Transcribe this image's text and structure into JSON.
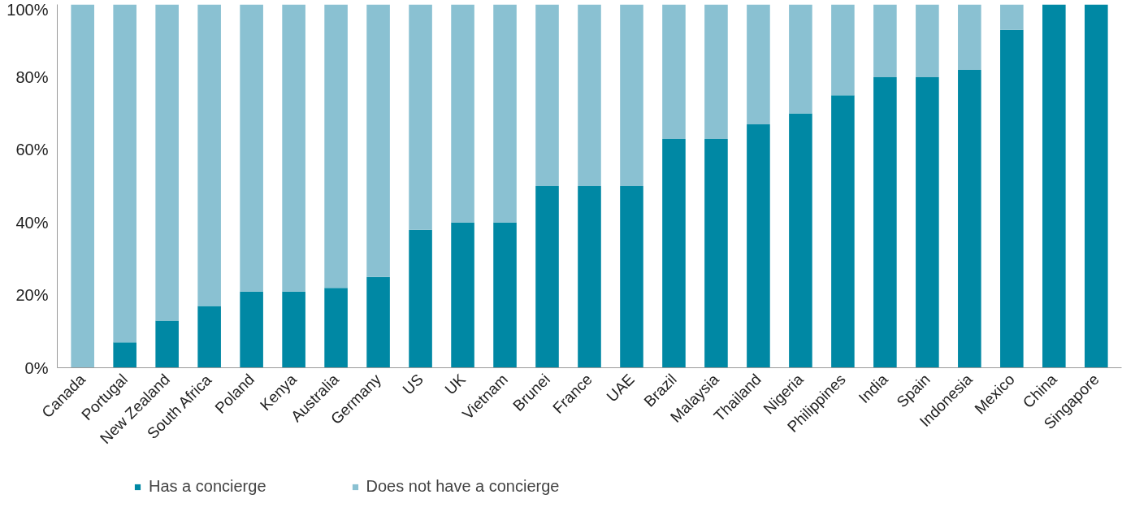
{
  "chart_data": {
    "type": "bar",
    "stacked": true,
    "categories": [
      "Canada",
      "Portugal",
      "New Zealand",
      "South Africa",
      "Poland",
      "Kenya",
      "Australia",
      "Germany",
      "US",
      "UK",
      "Vietnam",
      "Brunei",
      "France",
      "UAE",
      "Brazil",
      "Malaysia",
      "Thailand",
      "Nigeria",
      "Philippines",
      "India",
      "Spain",
      "Indonesia",
      "Mexico",
      "China",
      "Singapore"
    ],
    "series": [
      {
        "name": "Has a concierge",
        "color": "#0088a4",
        "values": [
          0,
          7,
          13,
          17,
          21,
          21,
          22,
          25,
          38,
          40,
          40,
          50,
          50,
          50,
          63,
          63,
          67,
          70,
          75,
          80,
          80,
          82,
          93,
          100,
          100
        ]
      },
      {
        "name": "Does not have a concierge",
        "color": "#8ac1d2",
        "values": [
          100,
          93,
          87,
          83,
          79,
          79,
          78,
          75,
          62,
          60,
          60,
          50,
          50,
          50,
          37,
          37,
          33,
          30,
          25,
          20,
          20,
          18,
          7,
          0,
          0
        ]
      }
    ],
    "ylim": [
      0,
      100
    ],
    "yticks": [
      {
        "value": 0,
        "label": "0%"
      },
      {
        "value": 20,
        "label": "20%"
      },
      {
        "value": 40,
        "label": "40%"
      },
      {
        "value": 60,
        "label": "60%"
      },
      {
        "value": 80,
        "label": "80%"
      },
      {
        "value": 100,
        "label": "100%"
      }
    ],
    "grid": false,
    "legend": "bottom"
  }
}
